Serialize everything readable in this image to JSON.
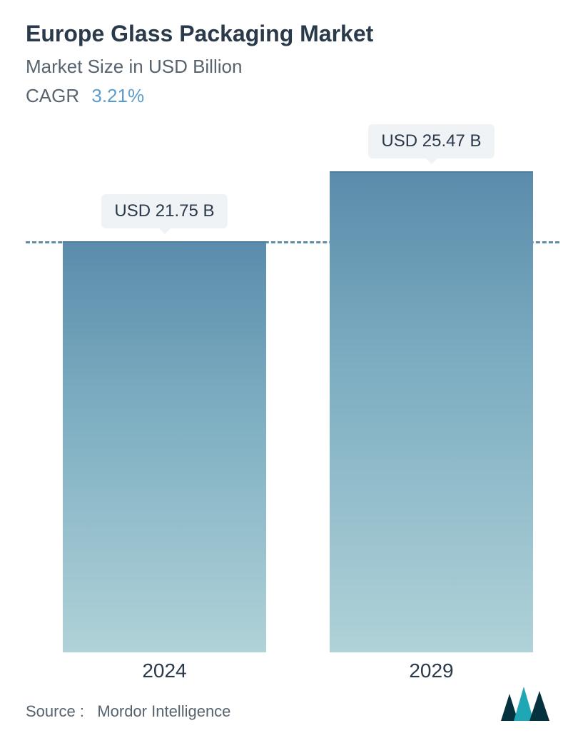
{
  "header": {
    "title": "Europe Glass Packaging Market",
    "subtitle": "Market Size in USD Billion",
    "cagr_label": "CAGR",
    "cagr_value": "3.21%"
  },
  "chart": {
    "type": "bar",
    "background_color": "#ffffff",
    "bar_gradient_top": "#5b8cab",
    "bar_gradient_bottom": "#b0d2d8",
    "dashed_line_color": "#5f8aa8",
    "badge_bg": "#f0f3f5",
    "badge_text_color": "#2a3a4a",
    "x_label_color": "#2a3a4a",
    "title_color": "#2a3a4a",
    "subtitle_color": "#57636e",
    "title_fontsize": 32,
    "subtitle_fontsize": 26,
    "badge_fontsize": 24,
    "xlabel_fontsize": 28,
    "ylim_max": 25.47,
    "dashed_line_value": 21.75,
    "bars": [
      {
        "year": "2024",
        "value": 21.75,
        "label": "USD 21.75 B",
        "center_pct": 26,
        "width_pct": 38
      },
      {
        "year": "2029",
        "value": 25.47,
        "label": "USD 25.47 B",
        "center_pct": 76,
        "width_pct": 38
      }
    ]
  },
  "footer": {
    "source_label": "Source :",
    "source_name": "Mordor Intelligence",
    "logo_colors": {
      "dark": "#06313f",
      "teal": "#1fa7b5"
    }
  }
}
